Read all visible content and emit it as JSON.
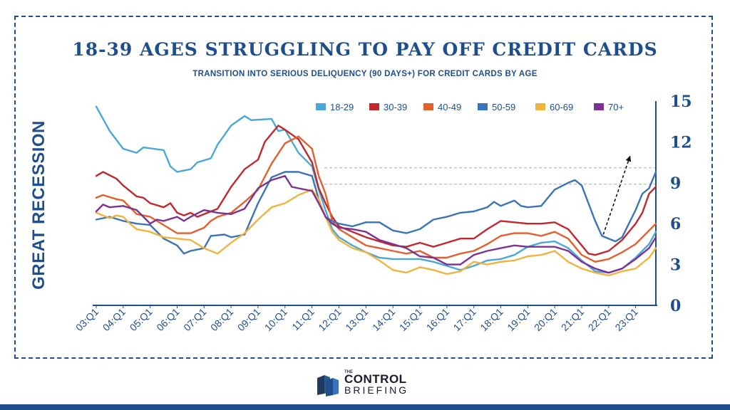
{
  "title": "18-39 AGES  STRUGGLING TO PAY OFF CREDIT CARDS",
  "subtitle": "TRANSITION INTO SERIOUS DELIQUENCY (90 DAYS+) FOR CREDIT CARDS BY AGE",
  "side_label": "GREAT RECESSION",
  "logo": {
    "the": "THE",
    "line1": "CONTROL",
    "line2": "BRIEFING"
  },
  "colors": {
    "frame": "#1e4f8c",
    "title": "#1e4f8c",
    "axis": "#1e4f8c"
  },
  "chart_data": {
    "type": "line",
    "title": "18-39 AGES  STRUGGLING TO PAY OFF CREDIT CARDS",
    "subtitle": "TRANSITION INTO SERIOUS DELIQUENCY (90 DAYS+) FOR CREDIT CARDS BY AGE",
    "x_labels": [
      "03:Q1",
      "04:Q1",
      "05:Q1",
      "06:Q1",
      "07:Q1",
      "08:Q1",
      "09:Q1",
      "10:Q1",
      "11:Q1",
      "12:Q1",
      "13:Q1",
      "14:Q1",
      "15:Q1",
      "16:Q1",
      "17:Q1",
      "18:Q1",
      "19:Q1",
      "20:Q1",
      "21:Q1",
      "22:Q1",
      "23:Q1"
    ],
    "x_range": [
      0,
      20.75
    ],
    "y_axis": {
      "side": "right",
      "ticks": [
        "0",
        "3",
        "6",
        "9",
        "12",
        "15"
      ],
      "range": [
        0,
        15
      ]
    },
    "grid": false,
    "reference_lines": [
      10.1,
      8.9
    ],
    "legend_position": "top",
    "trend_arrow": {
      "from": [
        18.8,
        5.2
      ],
      "to": [
        19.8,
        11.0
      ]
    },
    "series": [
      {
        "name": "18-29",
        "color": "#4aa8d8",
        "points": [
          [
            0,
            14.6
          ],
          [
            0.5,
            12.8
          ],
          [
            1,
            11.5
          ],
          [
            1.5,
            11.2
          ],
          [
            1.75,
            11.6
          ],
          [
            2.5,
            11.4
          ],
          [
            2.75,
            10.2
          ],
          [
            3,
            9.8
          ],
          [
            3.5,
            10.0
          ],
          [
            3.75,
            10.5
          ],
          [
            4.25,
            10.8
          ],
          [
            4.5,
            11.8
          ],
          [
            5,
            13.2
          ],
          [
            5.5,
            13.9
          ],
          [
            5.75,
            13.6
          ],
          [
            6.5,
            13.7
          ],
          [
            6.75,
            12.8
          ],
          [
            7,
            12.9
          ],
          [
            7.5,
            11.2
          ],
          [
            8,
            10.2
          ],
          [
            8.25,
            8.5
          ],
          [
            8.5,
            7.0
          ],
          [
            8.75,
            5.6
          ],
          [
            9,
            5.0
          ],
          [
            9.5,
            4.4
          ],
          [
            10,
            3.9
          ],
          [
            10.5,
            3.5
          ],
          [
            11,
            3.4
          ],
          [
            11.5,
            3.4
          ],
          [
            12,
            3.4
          ],
          [
            12.5,
            3.2
          ],
          [
            13,
            2.9
          ],
          [
            13.5,
            2.6
          ],
          [
            14,
            2.9
          ],
          [
            14.5,
            3.3
          ],
          [
            15,
            3.4
          ],
          [
            15.5,
            3.7
          ],
          [
            16,
            4.3
          ],
          [
            16.5,
            4.6
          ],
          [
            17,
            4.7
          ],
          [
            17.5,
            4.2
          ],
          [
            18,
            3.3
          ],
          [
            18.5,
            2.5
          ],
          [
            19,
            2.4
          ],
          [
            19.5,
            2.7
          ],
          [
            20,
            3.5
          ],
          [
            20.5,
            4.5
          ],
          [
            20.75,
            5.4
          ]
        ]
      },
      {
        "name": "30-39",
        "color": "#c0282d",
        "points": [
          [
            0,
            9.5
          ],
          [
            0.25,
            9.8
          ],
          [
            0.75,
            9.3
          ],
          [
            1,
            8.8
          ],
          [
            1.5,
            8.0
          ],
          [
            1.75,
            7.9
          ],
          [
            2,
            7.5
          ],
          [
            2.5,
            7.2
          ],
          [
            2.75,
            7.5
          ],
          [
            3,
            6.8
          ],
          [
            3.25,
            6.6
          ],
          [
            3.5,
            6.8
          ],
          [
            3.75,
            6.5
          ],
          [
            4.25,
            6.9
          ],
          [
            4.5,
            7.1
          ],
          [
            5,
            8.7
          ],
          [
            5.5,
            10.0
          ],
          [
            6,
            10.7
          ],
          [
            6.25,
            12.0
          ],
          [
            6.75,
            13.2
          ],
          [
            7,
            12.9
          ],
          [
            7.5,
            12.2
          ],
          [
            8,
            10.5
          ],
          [
            8.25,
            8.6
          ],
          [
            8.5,
            7.5
          ],
          [
            8.75,
            6.5
          ],
          [
            9,
            5.8
          ],
          [
            9.5,
            5.4
          ],
          [
            10,
            5.0
          ],
          [
            10.5,
            4.7
          ],
          [
            11,
            4.4
          ],
          [
            11.5,
            4.3
          ],
          [
            12,
            4.6
          ],
          [
            12.5,
            4.3
          ],
          [
            13,
            4.6
          ],
          [
            13.5,
            4.9
          ],
          [
            14,
            4.9
          ],
          [
            14.5,
            5.6
          ],
          [
            15,
            6.2
          ],
          [
            15.5,
            6.1
          ],
          [
            16,
            6.0
          ],
          [
            16.5,
            6.0
          ],
          [
            17,
            6.1
          ],
          [
            17.5,
            5.6
          ],
          [
            18,
            4.4
          ],
          [
            18.25,
            3.8
          ],
          [
            18.5,
            3.7
          ],
          [
            19,
            4.0
          ],
          [
            19.5,
            4.8
          ],
          [
            20,
            6.0
          ],
          [
            20.25,
            6.8
          ],
          [
            20.5,
            8.2
          ],
          [
            20.75,
            8.7
          ]
        ]
      },
      {
        "name": "40-49",
        "color": "#e35f2c",
        "points": [
          [
            0,
            7.9
          ],
          [
            0.25,
            8.1
          ],
          [
            0.75,
            7.8
          ],
          [
            1,
            7.7
          ],
          [
            1.5,
            6.7
          ],
          [
            2,
            6.5
          ],
          [
            2.5,
            5.9
          ],
          [
            3,
            5.3
          ],
          [
            3.5,
            5.3
          ],
          [
            4,
            5.7
          ],
          [
            4.25,
            6.2
          ],
          [
            4.5,
            6.5
          ],
          [
            5,
            6.8
          ],
          [
            5.5,
            7.6
          ],
          [
            6,
            8.5
          ],
          [
            6.5,
            10.4
          ],
          [
            7,
            11.9
          ],
          [
            7.5,
            12.4
          ],
          [
            8,
            11.5
          ],
          [
            8.25,
            9.5
          ],
          [
            8.5,
            8.2
          ],
          [
            8.75,
            6.2
          ],
          [
            9,
            5.6
          ],
          [
            9.5,
            5.0
          ],
          [
            10,
            4.4
          ],
          [
            10.5,
            4.2
          ],
          [
            11,
            4.0
          ],
          [
            11.5,
            3.8
          ],
          [
            12,
            4.0
          ],
          [
            12.5,
            3.5
          ],
          [
            13,
            3.5
          ],
          [
            13.5,
            3.8
          ],
          [
            14,
            4.0
          ],
          [
            14.5,
            4.5
          ],
          [
            15,
            5.1
          ],
          [
            15.5,
            5.3
          ],
          [
            16,
            5.3
          ],
          [
            16.5,
            5.1
          ],
          [
            17,
            5.4
          ],
          [
            17.5,
            4.9
          ],
          [
            18,
            3.7
          ],
          [
            18.5,
            3.2
          ],
          [
            19,
            3.4
          ],
          [
            19.5,
            3.9
          ],
          [
            20,
            4.5
          ],
          [
            20.25,
            5.0
          ],
          [
            20.75,
            6.0
          ]
        ]
      },
      {
        "name": "50-59",
        "color": "#3a74b8",
        "points": [
          [
            0,
            6.3
          ],
          [
            0.5,
            6.5
          ],
          [
            1,
            6.2
          ],
          [
            1.5,
            6.0
          ],
          [
            2,
            5.9
          ],
          [
            2.5,
            4.9
          ],
          [
            3,
            4.4
          ],
          [
            3.25,
            3.8
          ],
          [
            3.5,
            4.0
          ],
          [
            4,
            4.2
          ],
          [
            4.25,
            5.1
          ],
          [
            4.75,
            5.2
          ],
          [
            5,
            5.0
          ],
          [
            5.5,
            5.2
          ],
          [
            6,
            7.5
          ],
          [
            6.5,
            9.4
          ],
          [
            7,
            9.8
          ],
          [
            7.5,
            9.8
          ],
          [
            8,
            9.5
          ],
          [
            8.25,
            7.8
          ],
          [
            8.5,
            6.5
          ],
          [
            8.75,
            6.2
          ],
          [
            9,
            6.0
          ],
          [
            9.5,
            5.8
          ],
          [
            10,
            6.1
          ],
          [
            10.5,
            6.1
          ],
          [
            11,
            5.5
          ],
          [
            11.5,
            5.3
          ],
          [
            12,
            5.6
          ],
          [
            12.5,
            6.3
          ],
          [
            13,
            6.5
          ],
          [
            13.5,
            6.8
          ],
          [
            14,
            6.9
          ],
          [
            14.5,
            7.2
          ],
          [
            14.75,
            7.6
          ],
          [
            15,
            7.3
          ],
          [
            15.5,
            7.7
          ],
          [
            15.75,
            7.3
          ],
          [
            16,
            7.2
          ],
          [
            16.5,
            7.3
          ],
          [
            17,
            8.5
          ],
          [
            17.5,
            9.0
          ],
          [
            17.75,
            9.2
          ],
          [
            18,
            8.8
          ],
          [
            18.25,
            7.5
          ],
          [
            18.5,
            6.2
          ],
          [
            18.75,
            5.1
          ],
          [
            19,
            4.9
          ],
          [
            19.25,
            4.7
          ],
          [
            19.5,
            5.0
          ],
          [
            20,
            7.0
          ],
          [
            20.25,
            8.2
          ],
          [
            20.5,
            8.6
          ],
          [
            20.75,
            9.8
          ]
        ]
      },
      {
        "name": "60-69",
        "color": "#f2b33d",
        "points": [
          [
            0,
            6.8
          ],
          [
            0.5,
            6.4
          ],
          [
            0.75,
            6.6
          ],
          [
            1,
            6.5
          ],
          [
            1.25,
            6.0
          ],
          [
            1.5,
            5.6
          ],
          [
            2,
            5.4
          ],
          [
            2.5,
            5.0
          ],
          [
            3,
            4.9
          ],
          [
            3.5,
            4.8
          ],
          [
            4,
            4.2
          ],
          [
            4.5,
            3.8
          ],
          [
            5,
            4.6
          ],
          [
            5.5,
            5.3
          ],
          [
            6,
            6.3
          ],
          [
            6.5,
            7.2
          ],
          [
            7,
            7.5
          ],
          [
            7.5,
            8.1
          ],
          [
            8,
            8.5
          ],
          [
            8.25,
            7.8
          ],
          [
            8.5,
            6.5
          ],
          [
            8.75,
            5.4
          ],
          [
            9,
            4.8
          ],
          [
            9.5,
            4.2
          ],
          [
            10,
            3.9
          ],
          [
            10.5,
            3.3
          ],
          [
            11,
            2.6
          ],
          [
            11.5,
            2.4
          ],
          [
            12,
            2.8
          ],
          [
            12.5,
            2.6
          ],
          [
            13,
            2.3
          ],
          [
            13.5,
            2.5
          ],
          [
            14,
            3.2
          ],
          [
            14.5,
            3.0
          ],
          [
            15,
            3.2
          ],
          [
            15.5,
            3.3
          ],
          [
            16,
            3.6
          ],
          [
            16.5,
            3.7
          ],
          [
            17,
            4.0
          ],
          [
            17.5,
            3.2
          ],
          [
            18,
            2.7
          ],
          [
            18.5,
            2.4
          ],
          [
            19,
            2.2
          ],
          [
            19.5,
            2.5
          ],
          [
            20,
            2.7
          ],
          [
            20.5,
            3.5
          ],
          [
            20.75,
            4.2
          ]
        ]
      },
      {
        "name": "70+",
        "color": "#7b3294",
        "points": [
          [
            0,
            6.9
          ],
          [
            0.25,
            7.4
          ],
          [
            0.5,
            7.2
          ],
          [
            1,
            7.3
          ],
          [
            1.5,
            7.0
          ],
          [
            2,
            6.0
          ],
          [
            2.25,
            6.3
          ],
          [
            2.5,
            6.2
          ],
          [
            3,
            6.5
          ],
          [
            3.25,
            6.2
          ],
          [
            3.5,
            6.5
          ],
          [
            4,
            7.0
          ],
          [
            4.5,
            6.8
          ],
          [
            5,
            6.7
          ],
          [
            5.5,
            7.1
          ],
          [
            6,
            8.6
          ],
          [
            6.5,
            9.2
          ],
          [
            7,
            9.5
          ],
          [
            7.25,
            8.7
          ],
          [
            7.5,
            8.6
          ],
          [
            8,
            8.4
          ],
          [
            8.25,
            7.5
          ],
          [
            8.5,
            6.5
          ],
          [
            8.75,
            6.0
          ],
          [
            9,
            5.7
          ],
          [
            9.5,
            5.6
          ],
          [
            10,
            5.4
          ],
          [
            10.5,
            4.8
          ],
          [
            11,
            4.5
          ],
          [
            11.5,
            4.2
          ],
          [
            12,
            3.6
          ],
          [
            12.5,
            3.5
          ],
          [
            13,
            3.0
          ],
          [
            13.5,
            3.0
          ],
          [
            14,
            3.7
          ],
          [
            14.5,
            4.0
          ],
          [
            15,
            4.2
          ],
          [
            15.5,
            4.4
          ],
          [
            16,
            4.3
          ],
          [
            16.5,
            4.3
          ],
          [
            17,
            4.3
          ],
          [
            17.5,
            4.0
          ],
          [
            18,
            3.2
          ],
          [
            18.5,
            2.7
          ],
          [
            19,
            2.4
          ],
          [
            19.5,
            2.7
          ],
          [
            20,
            3.4
          ],
          [
            20.5,
            4.2
          ],
          [
            20.75,
            5.0
          ]
        ]
      }
    ]
  }
}
